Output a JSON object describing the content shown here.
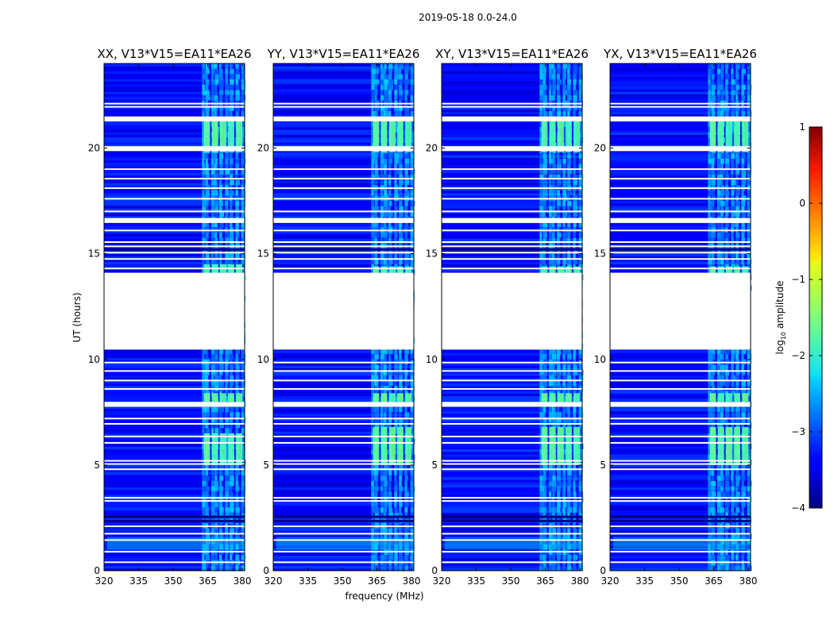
{
  "figure": {
    "suptitle": "2019-05-18 0.0-24.0",
    "xlabel": "frequency (MHz)",
    "ylabel": "UT (hours)",
    "colorbar_label_base": "log",
    "colorbar_label_sub": "10",
    "colorbar_label_rest": " amplitude",
    "colorbar_ticks": [
      "1",
      "0",
      "−1",
      "−2",
      "−3",
      "−4"
    ]
  },
  "chart_data": [
    {
      "type": "heatmap",
      "title": "XX, V13*V15=EA11*EA26",
      "x_range": [
        320,
        381
      ],
      "y_range": [
        0,
        24
      ],
      "x_ticks": [
        "320",
        "335",
        "350",
        "365",
        "380"
      ],
      "y_ticks": [
        "0",
        "5",
        "10",
        "15",
        "20"
      ],
      "color_range": [
        -4,
        1
      ],
      "bright_bands_hours": [
        [
          1.0,
          1.6
        ],
        [
          5.0,
          6.5
        ],
        [
          8.0,
          8.4
        ],
        [
          14.1,
          14.5
        ],
        [
          19.8,
          21.3
        ]
      ],
      "data_gap_hours": [
        10.5,
        14.1
      ]
    },
    {
      "type": "heatmap",
      "title": "YY, V13*V15=EA11*EA26",
      "x_range": [
        320,
        381
      ],
      "y_range": [
        0,
        24
      ],
      "x_ticks": [
        "320",
        "335",
        "350",
        "365",
        "380"
      ],
      "y_ticks": [
        "0",
        "5",
        "10",
        "15",
        "20"
      ],
      "color_range": [
        -4,
        1
      ],
      "bright_bands_hours": [
        [
          1.0,
          1.6
        ],
        [
          5.0,
          6.8
        ],
        [
          8.0,
          8.4
        ],
        [
          14.1,
          14.4
        ],
        [
          19.8,
          21.3
        ]
      ],
      "data_gap_hours": [
        10.5,
        14.1
      ]
    },
    {
      "type": "heatmap",
      "title": "XY, V13*V15=EA11*EA26",
      "x_range": [
        320,
        381
      ],
      "y_range": [
        0,
        24
      ],
      "x_ticks": [
        "320",
        "335",
        "350",
        "365",
        "380"
      ],
      "y_ticks": [
        "0",
        "5",
        "10",
        "15",
        "20"
      ],
      "color_range": [
        -4,
        1
      ],
      "bright_bands_hours": [
        [
          1.0,
          1.6
        ],
        [
          5.0,
          6.8
        ],
        [
          8.0,
          8.4
        ],
        [
          14.1,
          14.4
        ],
        [
          19.8,
          21.3
        ]
      ],
      "data_gap_hours": [
        10.5,
        14.1
      ]
    },
    {
      "type": "heatmap",
      "title": "YX, V13*V15=EA11*EA26",
      "x_range": [
        320,
        381
      ],
      "y_range": [
        0,
        24
      ],
      "x_ticks": [
        "320",
        "335",
        "350",
        "365",
        "380"
      ],
      "y_ticks": [
        "0",
        "5",
        "10",
        "15",
        "20"
      ],
      "color_range": [
        -4,
        1
      ],
      "bright_bands_hours": [
        [
          1.0,
          1.6
        ],
        [
          5.0,
          6.8
        ],
        [
          8.0,
          8.4
        ],
        [
          14.1,
          14.4
        ],
        [
          19.8,
          21.3
        ]
      ],
      "data_gap_hours": [
        10.5,
        14.1
      ]
    }
  ]
}
